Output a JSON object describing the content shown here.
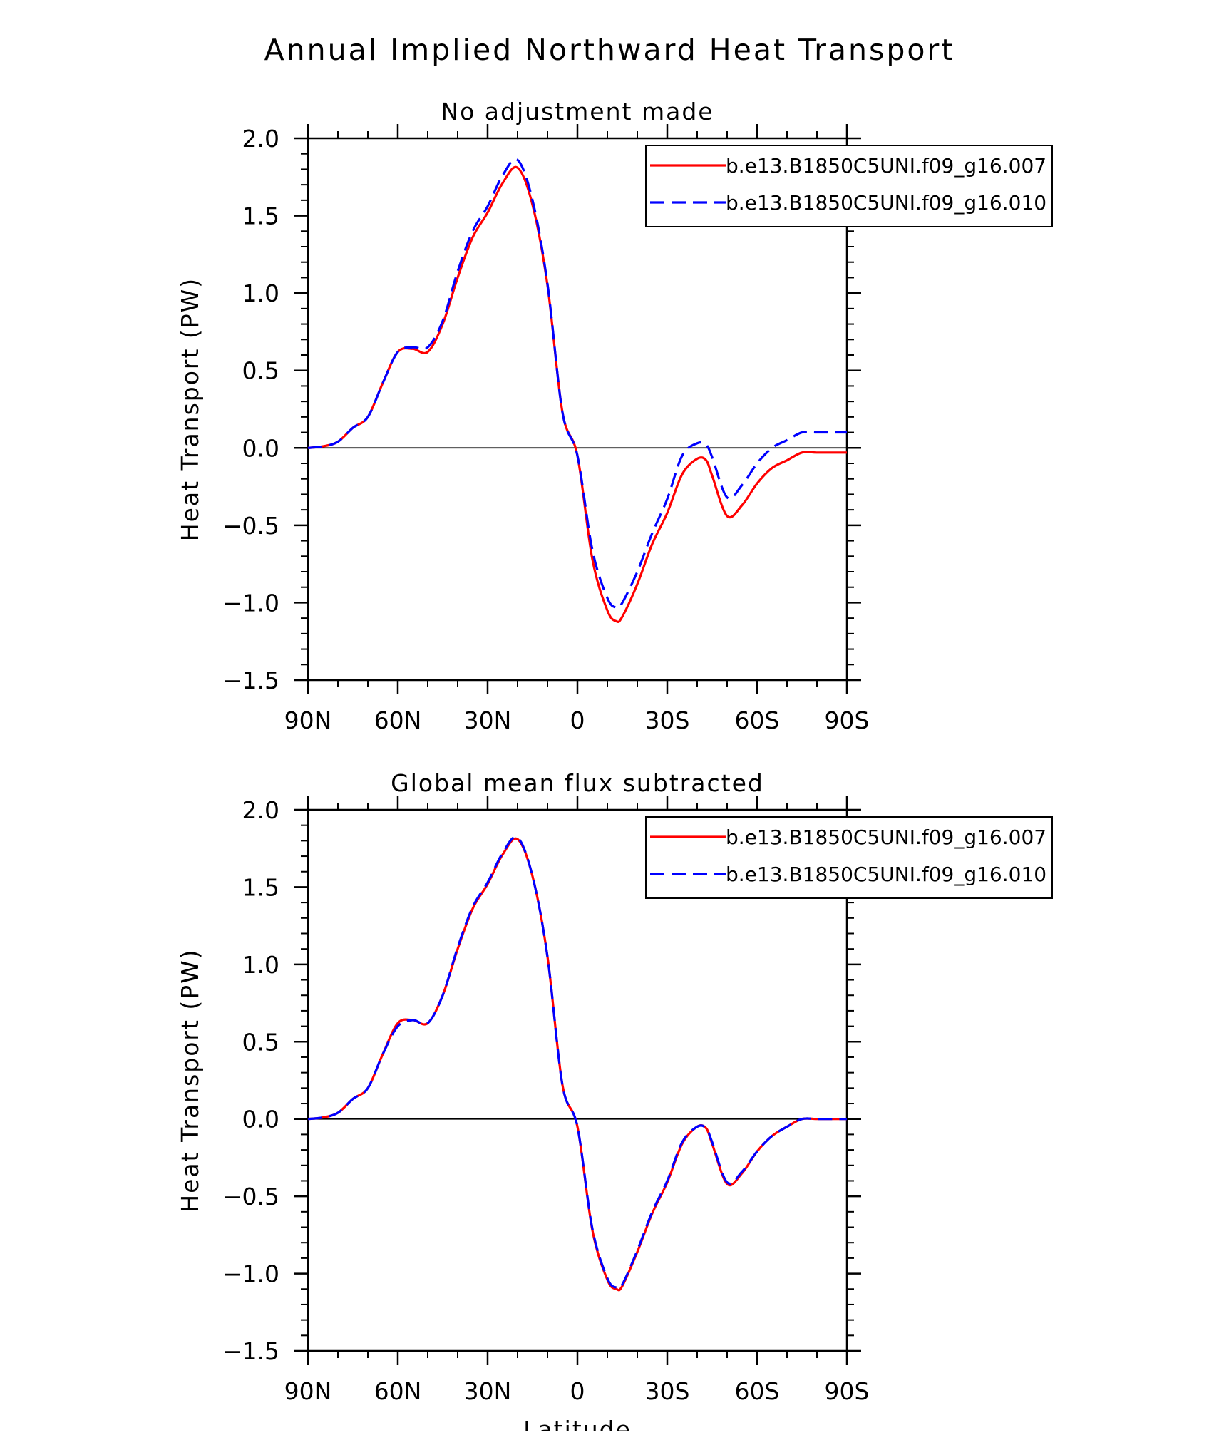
{
  "title": "Annual Implied Northward Heat Transport",
  "chart_data": [
    {
      "type": "line",
      "subtitle": "No adjustment made",
      "xlabel": "",
      "ylabel": "Heat Transport (PW)",
      "xlim": [
        90,
        -90
      ],
      "ylim": [
        -1.5,
        2.0
      ],
      "xticks": [
        90,
        60,
        30,
        0,
        -30,
        -60,
        -90
      ],
      "xtick_labels": [
        "90N",
        "60N",
        "30N",
        "0",
        "30S",
        "60S",
        "90S"
      ],
      "yticks": [
        -1.5,
        -1.0,
        -0.5,
        0.0,
        0.5,
        1.0,
        1.5,
        2.0
      ],
      "ytick_labels": [
        "−1.5",
        "−1.0",
        "−0.5",
        "0.0",
        "0.5",
        "1.0",
        "1.5",
        "2.0"
      ],
      "zero_line": true,
      "legend_position": "top-right",
      "series": [
        {
          "name": "b.e13.B1850C5UNI.f09_g16.007",
          "color": "#ff0000",
          "dash": "solid",
          "x": [
            90,
            85,
            80,
            75,
            70,
            65,
            60,
            55,
            50,
            45,
            40,
            35,
            30,
            25,
            20,
            15,
            10,
            5,
            0,
            -5,
            -10,
            -13,
            -15,
            -20,
            -25,
            -30,
            -35,
            -40,
            -43,
            -45,
            -50,
            -55,
            -60,
            -65,
            -70,
            -75,
            -80,
            -85,
            -90
          ],
          "y": [
            0.0,
            0.01,
            0.04,
            0.13,
            0.2,
            0.42,
            0.62,
            0.64,
            0.62,
            0.8,
            1.1,
            1.36,
            1.52,
            1.71,
            1.81,
            1.57,
            1.05,
            0.23,
            -0.05,
            -0.72,
            -1.05,
            -1.12,
            -1.09,
            -0.88,
            -0.62,
            -0.42,
            -0.17,
            -0.07,
            -0.08,
            -0.18,
            -0.44,
            -0.37,
            -0.23,
            -0.13,
            -0.08,
            -0.03,
            -0.03,
            -0.03,
            -0.03
          ]
        },
        {
          "name": "b.e13.B1850C5UNI.f09_g16.010",
          "color": "#0000ff",
          "dash": "dashed",
          "x": [
            90,
            85,
            80,
            75,
            70,
            65,
            60,
            55,
            50,
            45,
            40,
            35,
            30,
            25,
            20,
            15,
            10,
            5,
            0,
            -5,
            -10,
            -13,
            -15,
            -20,
            -25,
            -30,
            -35,
            -40,
            -43,
            -45,
            -50,
            -55,
            -60,
            -65,
            -70,
            -75,
            -80,
            -85,
            -90
          ],
          "y": [
            0.0,
            0.01,
            0.04,
            0.13,
            0.2,
            0.42,
            0.62,
            0.65,
            0.65,
            0.82,
            1.14,
            1.4,
            1.56,
            1.76,
            1.86,
            1.6,
            1.06,
            0.23,
            -0.05,
            -0.66,
            -0.97,
            -1.03,
            -1.0,
            -0.8,
            -0.55,
            -0.33,
            -0.05,
            0.03,
            0.02,
            -0.06,
            -0.32,
            -0.24,
            -0.1,
            0.0,
            0.05,
            0.1,
            0.1,
            0.1,
            0.1
          ]
        }
      ]
    },
    {
      "type": "line",
      "subtitle": "Global mean flux subtracted",
      "xlabel": "Latitude",
      "ylabel": "Heat Transport (PW)",
      "xlim": [
        90,
        -90
      ],
      "ylim": [
        -1.5,
        2.0
      ],
      "xticks": [
        90,
        60,
        30,
        0,
        -30,
        -60,
        -90
      ],
      "xtick_labels": [
        "90N",
        "60N",
        "30N",
        "0",
        "30S",
        "60S",
        "90S"
      ],
      "yticks": [
        -1.5,
        -1.0,
        -0.5,
        0.0,
        0.5,
        1.0,
        1.5,
        2.0
      ],
      "ytick_labels": [
        "−1.5",
        "−1.0",
        "−0.5",
        "0.0",
        "0.5",
        "1.0",
        "1.5",
        "2.0"
      ],
      "zero_line": true,
      "legend_position": "top-right",
      "series": [
        {
          "name": "b.e13.B1850C5UNI.f09_g16.007",
          "color": "#ff0000",
          "dash": "solid",
          "x": [
            90,
            85,
            80,
            75,
            70,
            65,
            60,
            55,
            50,
            45,
            40,
            35,
            30,
            25,
            20,
            15,
            10,
            5,
            0,
            -5,
            -10,
            -13,
            -15,
            -20,
            -25,
            -30,
            -35,
            -40,
            -43,
            -45,
            -50,
            -55,
            -60,
            -65,
            -70,
            -75,
            -80,
            -85,
            -90
          ],
          "y": [
            0.0,
            0.01,
            0.04,
            0.13,
            0.2,
            0.42,
            0.62,
            0.64,
            0.62,
            0.8,
            1.1,
            1.36,
            1.52,
            1.71,
            1.81,
            1.57,
            1.05,
            0.22,
            -0.05,
            -0.72,
            -1.04,
            -1.1,
            -1.08,
            -0.86,
            -0.61,
            -0.41,
            -0.16,
            -0.05,
            -0.06,
            -0.16,
            -0.42,
            -0.35,
            -0.21,
            -0.11,
            -0.05,
            0.0,
            0.0,
            0.0,
            0.0
          ]
        },
        {
          "name": "b.e13.B1850C5UNI.f09_g16.010",
          "color": "#0000ff",
          "dash": "dashed",
          "x": [
            90,
            85,
            80,
            75,
            70,
            65,
            60,
            55,
            50,
            45,
            40,
            35,
            30,
            25,
            20,
            15,
            10,
            5,
            0,
            -5,
            -10,
            -13,
            -15,
            -20,
            -25,
            -30,
            -35,
            -40,
            -43,
            -45,
            -50,
            -55,
            -60,
            -65,
            -70,
            -75,
            -80,
            -85,
            -90
          ],
          "y": [
            0.0,
            0.01,
            0.04,
            0.13,
            0.2,
            0.42,
            0.6,
            0.64,
            0.62,
            0.8,
            1.11,
            1.37,
            1.53,
            1.72,
            1.82,
            1.57,
            1.05,
            0.22,
            -0.05,
            -0.71,
            -1.03,
            -1.09,
            -1.07,
            -0.85,
            -0.6,
            -0.4,
            -0.15,
            -0.05,
            -0.06,
            -0.15,
            -0.41,
            -0.34,
            -0.21,
            -0.11,
            -0.05,
            0.0,
            0.0,
            0.0,
            0.0
          ]
        }
      ]
    }
  ]
}
